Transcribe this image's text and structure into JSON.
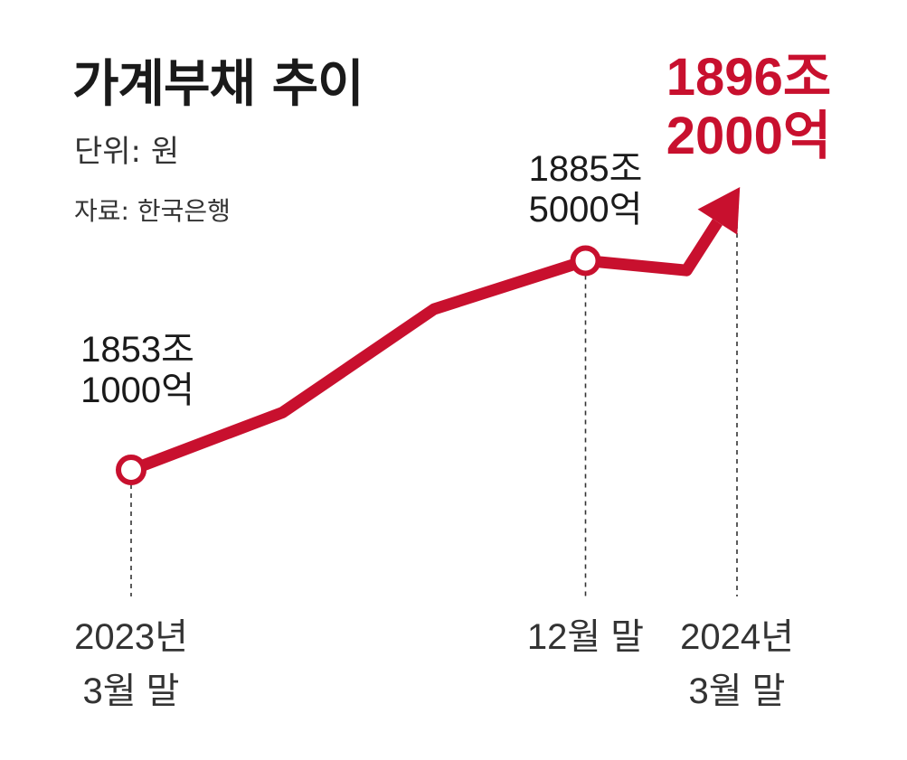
{
  "title": "가계부채 추이",
  "unit": "단위: 원",
  "source": "자료: 한국은행",
  "chart_data": {
    "type": "line",
    "title": "가계부채 추이",
    "unit": "단위: 원",
    "source": "자료: 한국은행",
    "accent_color": "#c8102e",
    "points": [
      {
        "period": "2023-03",
        "value": 1853.1,
        "line1": "1853조",
        "line2": "1000억",
        "marker": true
      },
      {
        "period": "2023-06",
        "value": 1862
      },
      {
        "period": "2023-09",
        "value": 1878
      },
      {
        "period": "2023-12",
        "value": 1885.5,
        "line1": "1885조",
        "line2": "5000억",
        "marker": true
      },
      {
        "period": "2024-02",
        "value": 1884
      },
      {
        "period": "2024-03",
        "value": 1896.2,
        "line1": "1896조",
        "line2": "2000억",
        "arrow": true
      }
    ],
    "x_ticks": [
      {
        "period": "2023-03",
        "line1": "2023년",
        "line2": "3월 말"
      },
      {
        "period": "2023-12",
        "line1": "12월 말",
        "line2": ""
      },
      {
        "period": "2024-03",
        "line1": "2024년",
        "line2": "3월 말"
      }
    ],
    "grid": false,
    "legend": "none"
  }
}
